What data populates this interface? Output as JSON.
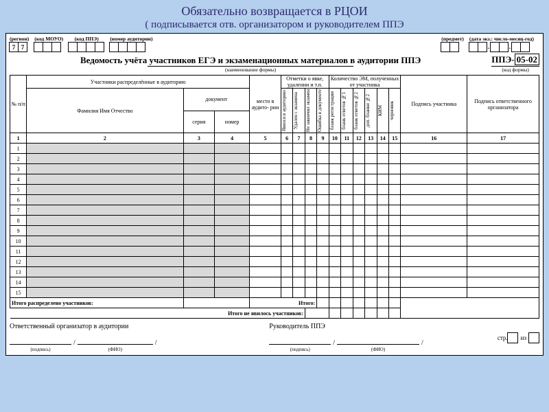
{
  "banner": {
    "line1": "Обязательно возвращается в РЦОИ",
    "line2": "( подписывается отв. организатором и руководителем ППЭ"
  },
  "header_slots": {
    "region": {
      "label": "(регион)",
      "cells": [
        "7",
        "7"
      ]
    },
    "mouo": {
      "label": "(код МОУО)",
      "cells": [
        "",
        "",
        ""
      ]
    },
    "ppe": {
      "label": "(код ППЭ)",
      "cells": [
        "",
        "",
        "",
        ""
      ]
    },
    "aud": {
      "label": "(номер аудитории)",
      "cells": [
        "",
        "",
        "",
        ""
      ]
    },
    "subj": {
      "label": "(предмет)",
      "cells": [
        "",
        ""
      ]
    },
    "date": {
      "label": "(дата экз.: число-месяц-год)",
      "cells": [
        "",
        "",
        ".",
        "",
        "",
        ".",
        "",
        ""
      ]
    }
  },
  "form": {
    "title": "Ведомость учёта участников ЕГЭ и экзаменационных материалов в аудитории ППЭ",
    "subtitle": "(наименование формы)",
    "code_prefix": "ППЭ-",
    "code": "05-02",
    "code_sub": "(код формы)"
  },
  "columns": {
    "c1": "№ п/п",
    "grpA": "Участники распределённые в аудиторию",
    "c2": "Фамилия Имя Отчество",
    "doc": "документ",
    "c3": "серия",
    "c4": "номер",
    "c5": "место в аудито- рии",
    "grpB": "Отметки о явке, удалении и т.п.",
    "c6": "Явился в аудиторию",
    "c7": "Удален с экзамена",
    "c8": "Не закончил экзамен",
    "c9": "Ошибка в документе",
    "grpC": "Количество ЭМ, полученных от участника",
    "c10": "бланк регистрации",
    "c11": "бланк ответов №1",
    "c12": "бланк ответов №2",
    "c13": "доп. бланки №2",
    "c14": "КИМ",
    "c15": "черновик",
    "c16": "Подпись участника",
    "c17": "Подпись ответственного организатора"
  },
  "numbers": [
    "1",
    "2",
    "3",
    "4",
    "5",
    "6",
    "7",
    "8",
    "9",
    "10",
    "11",
    "12",
    "13",
    "14",
    "15",
    "16",
    "17"
  ],
  "rows": 15,
  "totals": {
    "a": "Итого распределено участников:",
    "b": "Итого:",
    "c": "Итого не явилось участников:"
  },
  "signatures": {
    "org": "Ответственный организатор в аудитории",
    "head": "Руководитель ППЭ",
    "sign": "(подпись)",
    "fio": "(ФИО)",
    "page": "стр.",
    "of": "из"
  },
  "style": {
    "bg": "#b5d0ef",
    "shade": "#d9d9d9",
    "banner_color": "#2b2b6b"
  }
}
